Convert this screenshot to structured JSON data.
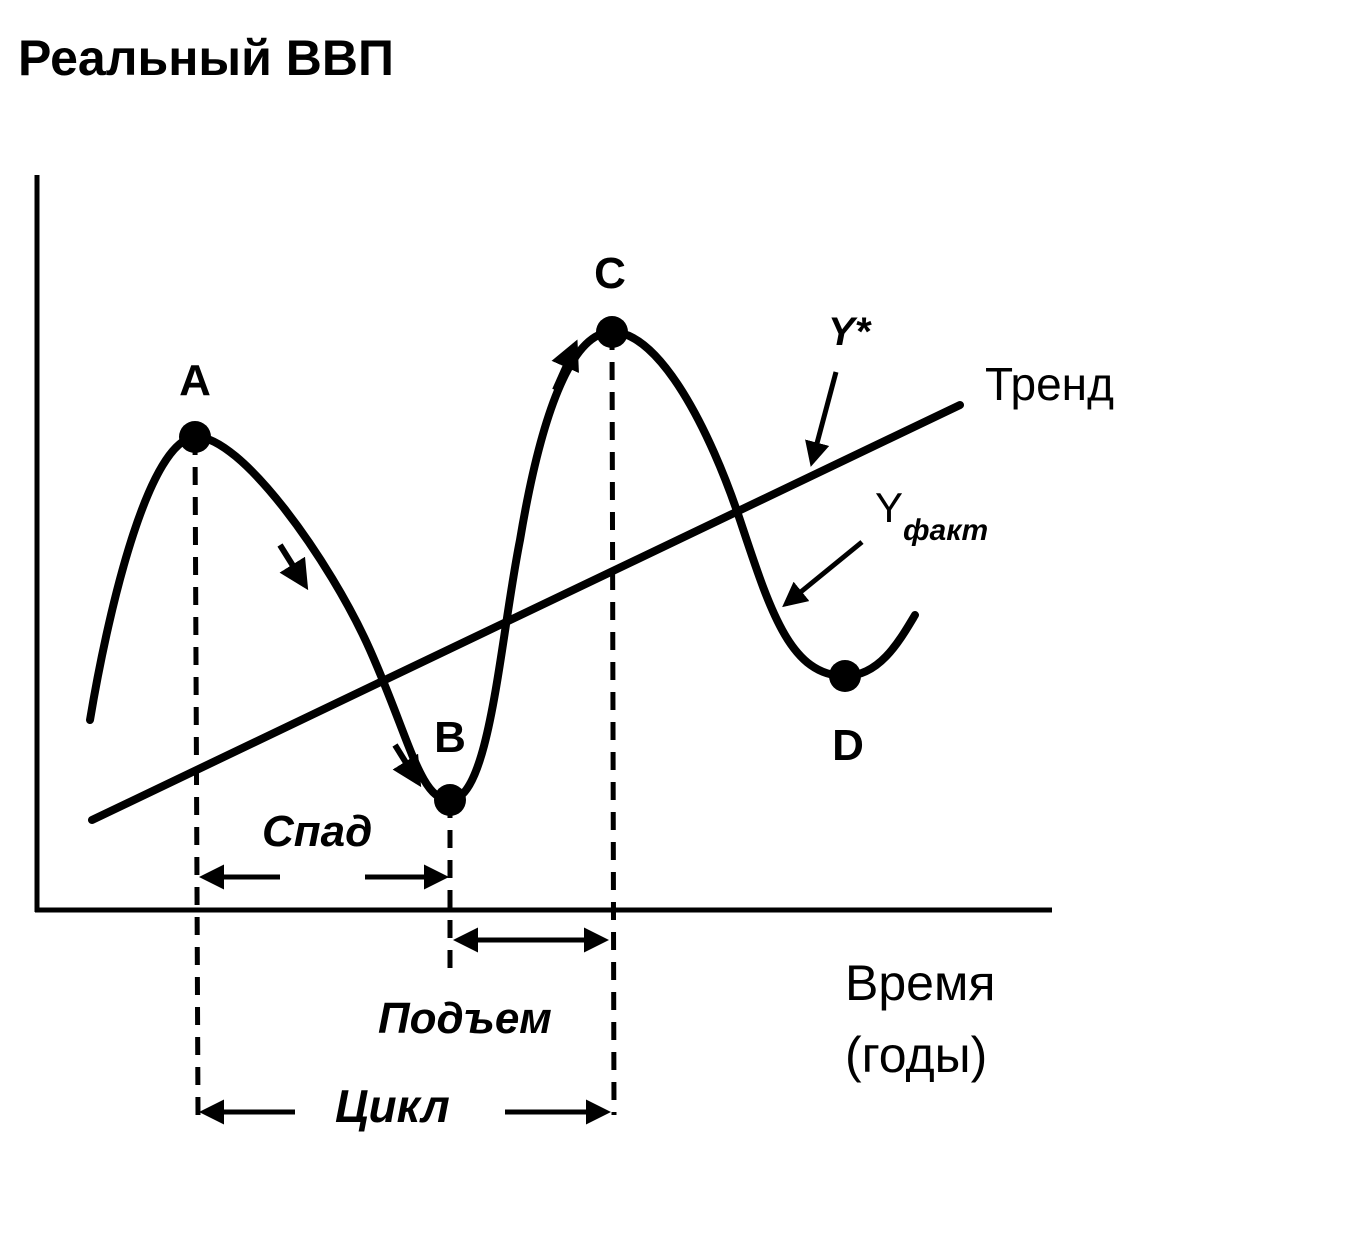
{
  "title": "Реальный ВВП",
  "axis": {
    "x_label_line1": "Время",
    "x_label_line2": "(годы)"
  },
  "points": {
    "a": "A",
    "b": "B",
    "c": "C",
    "d": "D"
  },
  "trend_label": "Тренд",
  "potential_label": "Y*",
  "actual_label_main": "Y",
  "actual_label_sub": "факт",
  "phases": {
    "recession": "Спад",
    "expansion": "Подъем",
    "cycle": "Цикл"
  },
  "colors": {
    "ink": "#000000",
    "background": "#ffffff"
  }
}
